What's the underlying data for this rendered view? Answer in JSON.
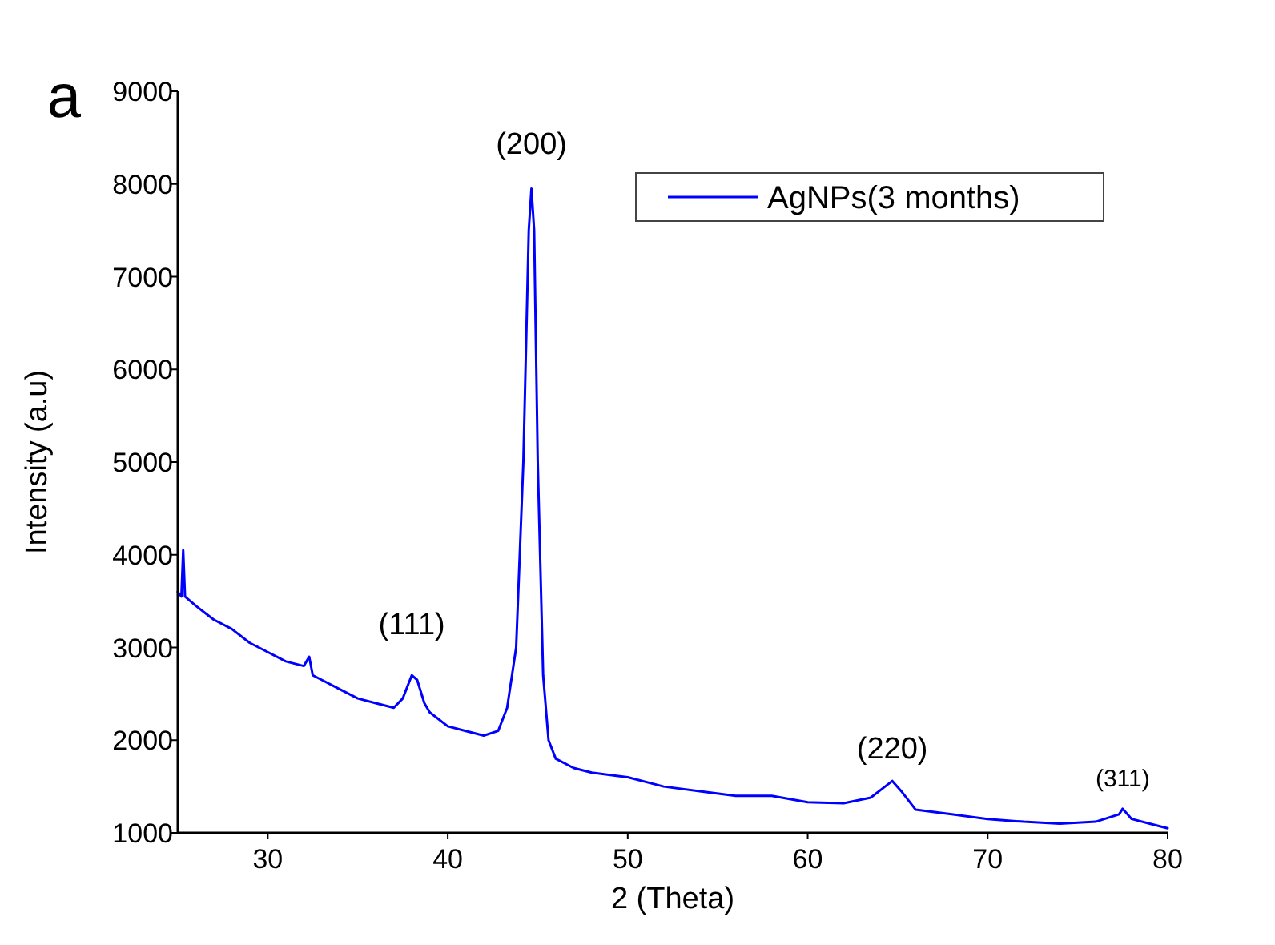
{
  "chart_data": {
    "type": "line",
    "xlabel": "2 (Theta)",
    "ylabel": "Intensity (a.u)",
    "xlim": [
      25,
      80
    ],
    "xticks": [
      30,
      40,
      50,
      60,
      70,
      80
    ],
    "ylim": [
      1000,
      9000
    ],
    "yticks": [
      1000,
      2000,
      3000,
      4000,
      5000,
      6000,
      7000,
      8000,
      9000
    ],
    "grid": false,
    "legend": "top right",
    "marker": "none",
    "line_style": "solid",
    "annotations": [
      "a",
      {
        "text": "(111)",
        "x": 38,
        "y": 2760
      },
      {
        "text": "(200)",
        "x": 44.65,
        "y": 7950
      },
      {
        "text": "(220)",
        "x": 64.7,
        "y": 1560
      },
      {
        "text": "(311)",
        "x": 77.5,
        "y": 1260
      }
    ],
    "series": [
      {
        "name": "AgNPs(3 months)",
        "color": "#0000ff",
        "x": [
          25,
          25.2,
          25.3,
          25.4,
          26,
          27,
          28,
          29,
          30,
          31,
          32,
          32.3,
          32.5,
          33,
          34,
          35,
          36,
          37,
          37.5,
          38,
          38.3,
          38.7,
          39,
          40,
          41,
          42,
          42.8,
          43.3,
          43.8,
          44.2,
          44.5,
          44.65,
          44.8,
          45,
          45.3,
          45.6,
          46,
          47,
          48,
          50,
          52,
          54,
          56,
          58,
          60,
          62,
          63.5,
          64.3,
          64.7,
          65.2,
          66,
          68,
          70,
          72,
          74,
          76,
          77.3,
          77.5,
          78,
          79,
          80
        ],
        "values": [
          3600,
          3550,
          4050,
          3550,
          3450,
          3300,
          3200,
          3050,
          2950,
          2850,
          2800,
          2900,
          2700,
          2650,
          2550,
          2450,
          2400,
          2350,
          2450,
          2700,
          2650,
          2400,
          2300,
          2150,
          2100,
          2050,
          2100,
          2350,
          3000,
          5000,
          7500,
          7950,
          7500,
          5000,
          2700,
          2000,
          1800,
          1700,
          1650,
          1600,
          1500,
          1450,
          1400,
          1400,
          1330,
          1320,
          1380,
          1500,
          1560,
          1450,
          1250,
          1200,
          1150,
          1120,
          1100,
          1120,
          1200,
          1260,
          1150,
          1100,
          1050
        ]
      }
    ]
  }
}
